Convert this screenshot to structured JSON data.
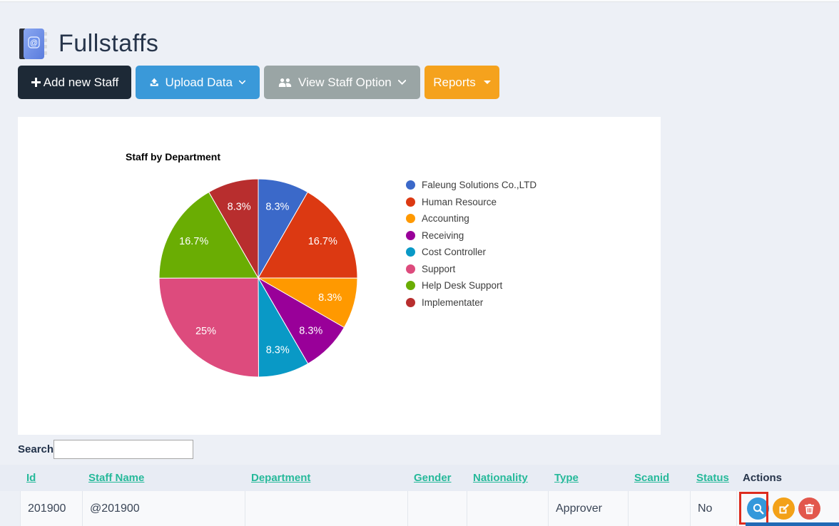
{
  "page": {
    "title": "Fullstaffs"
  },
  "toolbar": {
    "add_new_staff": "Add new Staff",
    "upload_data": "Upload Data",
    "view_staff_option": "View Staff Option",
    "reports": "Reports"
  },
  "chart_data": {
    "type": "pie",
    "title": "Staff by Department",
    "legend_position": "right",
    "categories": [
      "Faleung Solutions Co.,LTD",
      "Human Resource",
      "Accounting",
      "Receiving",
      "Cost Controller",
      "Support",
      "Help Desk Support",
      "Implementater"
    ],
    "values": [
      8.3,
      16.7,
      8.3,
      8.3,
      8.3,
      25,
      16.7,
      8.3
    ],
    "slice_labels": [
      "8.3%",
      "16.7%",
      "8.3%",
      "8.3%",
      "8.3%",
      "25%",
      "16.7%",
      "8.3%"
    ],
    "colors": [
      "#3B69C9",
      "#DC3912",
      "#FF9900",
      "#990099",
      "#0999C6",
      "#DD4B7D",
      "#6AAD03",
      "#B82E2E"
    ]
  },
  "search": {
    "label": "Search"
  },
  "table": {
    "headers": [
      "Id",
      "Staff Name",
      "Department",
      "Gender",
      "Nationality",
      "Type",
      "Scanid",
      "Status",
      "Actions"
    ],
    "rows": [
      {
        "id": "201900",
        "staff_name": "@201900",
        "department": "",
        "gender": "",
        "nationality": "",
        "type": "Approver",
        "scanid": "",
        "status": "No"
      }
    ]
  },
  "action_icons": {
    "view": "search-icon",
    "edit": "edit-icon",
    "delete": "trash-icon"
  }
}
